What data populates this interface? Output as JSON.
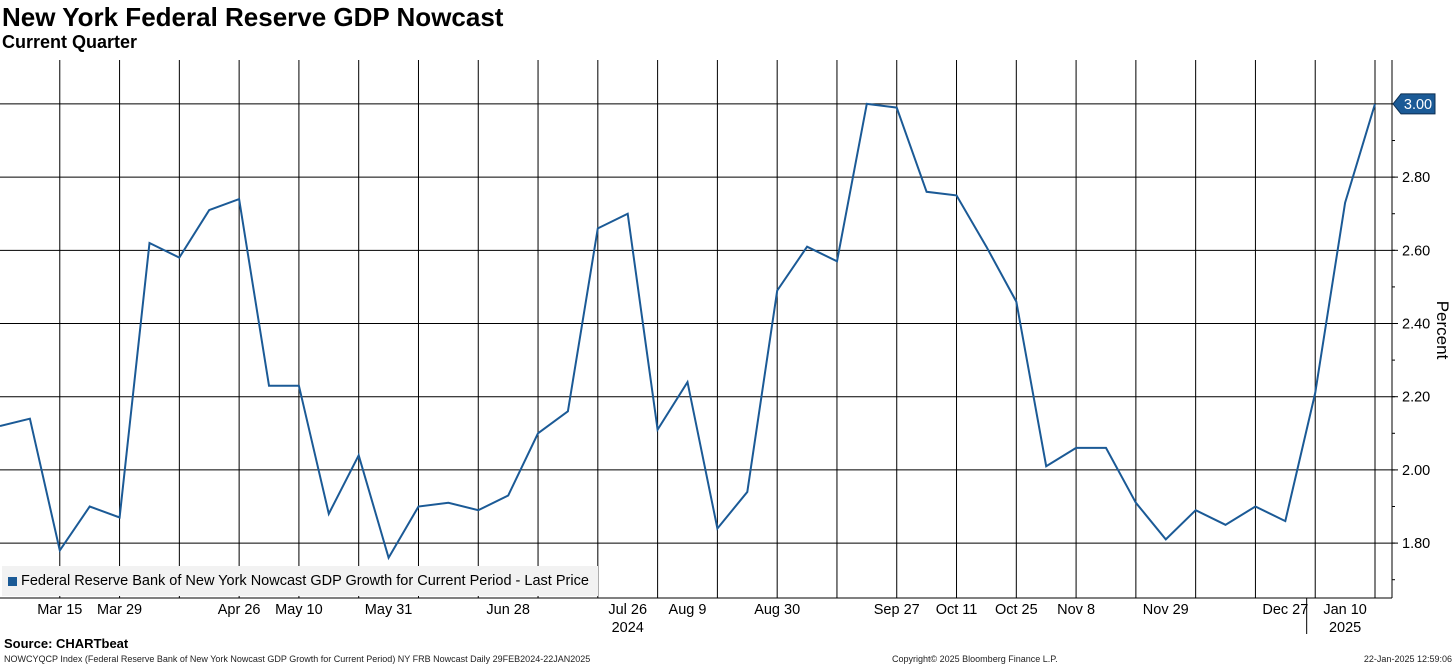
{
  "title": "New York Federal Reserve GDP Nowcast",
  "subtitle": "Current Quarter",
  "source": "Source: CHARTbeat",
  "footer": {
    "left": "NOWCYQCP Index (Federal Reserve Bank of New York Nowcast GDP Growth for Current Period) NY FRB Nowcast  Daily 29FEB2024-22JAN2025",
    "center": "Copyright© 2025 Bloomberg Finance L.P.",
    "right": "22-Jan-2025 12:59:06"
  },
  "colors": {
    "line": "#1b5a96",
    "grid": "#000000",
    "label_bg": "#1b5a96"
  },
  "chart_data": {
    "type": "line",
    "title": "New York Federal Reserve GDP Nowcast",
    "subtitle": "Current Quarter",
    "ylabel": "Percent",
    "ylim": [
      1.65,
      3.12
    ],
    "yticks": [
      1.8,
      2.0,
      2.2,
      2.4,
      2.6,
      2.8,
      3.0
    ],
    "ytick_labels": [
      "1.80",
      "2.00",
      "2.20",
      "2.40",
      "2.60",
      "2.80",
      "3.00"
    ],
    "x_tick_labels": [
      "Mar 15",
      "Mar 29",
      "Apr 26",
      "May 10",
      "May 31",
      "Jun 28",
      "Jul 26",
      "Aug 9",
      "Aug 30",
      "Sep 27",
      "Oct 11",
      "Oct 25",
      "Nov 8",
      "Nov 29",
      "Dec 27",
      "Jan 10"
    ],
    "year_labels": [
      {
        "label": "2024",
        "under": "Jul 26"
      },
      {
        "label": "2025",
        "under": "Jan 10"
      }
    ],
    "legend": "Federal Reserve Bank of New York Nowcast GDP Growth for Current Period - Last Price",
    "legend_position": "bottom-left",
    "last_value_label": "3.00",
    "grid": true,
    "series": [
      {
        "name": "Federal Reserve Bank of New York Nowcast GDP Growth for Current Period - Last Price",
        "x": [
          "2024-03-01",
          "2024-03-08",
          "2024-03-15",
          "2024-03-22",
          "2024-03-29",
          "2024-04-05",
          "2024-04-12",
          "2024-04-19",
          "2024-04-26",
          "2024-05-03",
          "2024-05-10",
          "2024-05-17",
          "2024-05-24",
          "2024-05-31",
          "2024-06-07",
          "2024-06-14",
          "2024-06-21",
          "2024-06-28",
          "2024-07-05",
          "2024-07-12",
          "2024-07-19",
          "2024-07-26",
          "2024-08-02",
          "2024-08-09",
          "2024-08-16",
          "2024-08-23",
          "2024-08-30",
          "2024-09-06",
          "2024-09-13",
          "2024-09-20",
          "2024-09-27",
          "2024-10-04",
          "2024-10-11",
          "2024-10-18",
          "2024-10-25",
          "2024-11-01",
          "2024-11-08",
          "2024-11-15",
          "2024-11-22",
          "2024-11-29",
          "2024-12-06",
          "2024-12-13",
          "2024-12-20",
          "2024-12-27",
          "2025-01-03",
          "2025-01-10",
          "2025-01-17"
        ],
        "values": [
          2.12,
          2.14,
          1.78,
          1.9,
          1.87,
          2.62,
          2.58,
          2.71,
          2.74,
          2.23,
          2.23,
          1.88,
          2.04,
          1.76,
          1.9,
          1.91,
          1.89,
          1.93,
          2.1,
          2.16,
          2.66,
          2.7,
          2.11,
          2.24,
          1.84,
          1.94,
          2.49,
          2.61,
          2.57,
          3.0,
          2.99,
          2.76,
          2.75,
          2.61,
          2.46,
          2.01,
          2.06,
          2.06,
          1.91,
          1.81,
          1.89,
          1.85,
          1.9,
          1.86,
          2.21,
          2.73,
          3.0
        ]
      }
    ]
  }
}
